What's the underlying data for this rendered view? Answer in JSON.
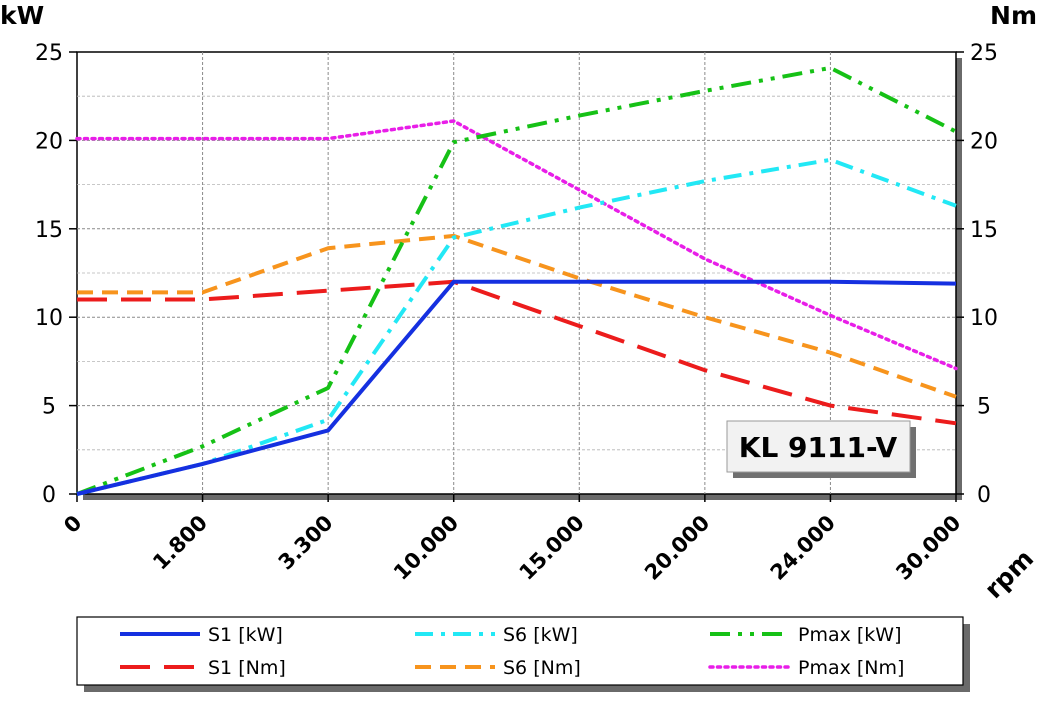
{
  "chart_data": {
    "type": "line",
    "y_left_unit": "kW",
    "y_right_unit": "Nm",
    "x_unit": "rpm",
    "model_label": "KL 9111-V",
    "x_categories": [
      "0",
      "1.800",
      "3.300",
      "10.000",
      "15.000",
      "20.000",
      "24.000",
      "30.000"
    ],
    "y_ticks": [
      "0",
      "5",
      "10",
      "15",
      "20",
      "25"
    ],
    "ylim": [
      0,
      25
    ],
    "grid": true,
    "legend_position": "bottom",
    "series": [
      {
        "name": "S1 [kW]",
        "axis": "left",
        "color": "#1530e0",
        "style": "solid",
        "values": [
          0,
          1.7,
          3.6,
          12.0,
          12.0,
          12.0,
          12.0,
          11.9
        ]
      },
      {
        "name": "S6 [kW]",
        "axis": "left",
        "color": "#22e8f5",
        "style": "dashdot",
        "values": [
          0,
          1.7,
          4.2,
          14.5,
          16.2,
          17.7,
          18.9,
          16.3
        ]
      },
      {
        "name": "Pmax [kW]",
        "axis": "left",
        "color": "#16c116",
        "style": "dashdotdot",
        "values": [
          0,
          2.7,
          6.0,
          19.9,
          21.4,
          22.8,
          24.1,
          20.5
        ]
      },
      {
        "name": "S1 [Nm]",
        "axis": "right",
        "color": "#ec1c1c",
        "style": "longdash",
        "values": [
          11.0,
          11.0,
          11.5,
          12.0,
          9.5,
          7.0,
          5.0,
          4.0
        ]
      },
      {
        "name": "S6 [Nm]",
        "axis": "right",
        "color": "#f7941d",
        "style": "dash",
        "values": [
          11.4,
          11.4,
          13.9,
          14.6,
          12.2,
          10.0,
          8.0,
          5.5
        ]
      },
      {
        "name": "Pmax [Nm]",
        "axis": "right",
        "color": "#e81ee8",
        "style": "dot",
        "values": [
          20.1,
          20.1,
          20.1,
          21.1,
          17.2,
          13.3,
          10.1,
          7.1
        ]
      }
    ]
  }
}
